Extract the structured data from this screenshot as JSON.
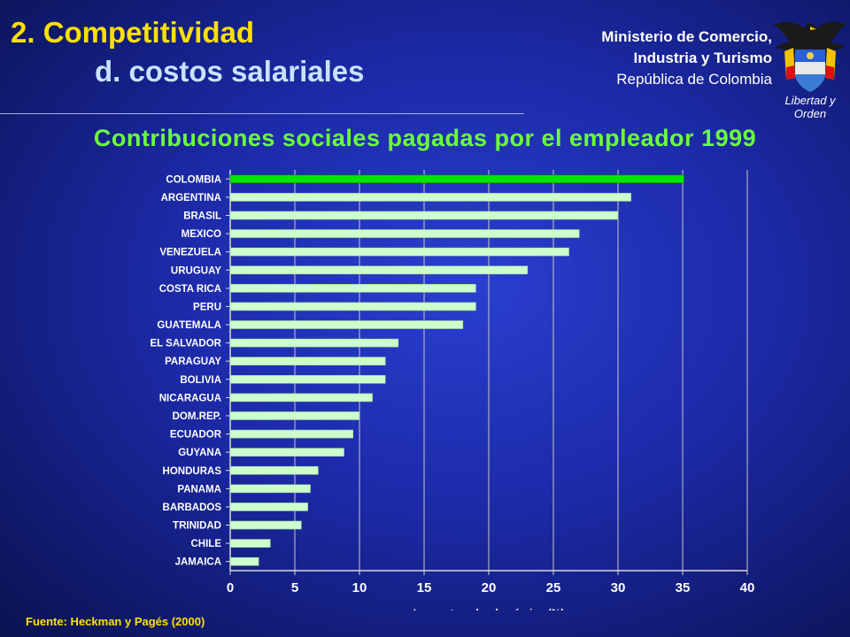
{
  "header": {
    "section": "2.  Competitividad",
    "subsection": "d. costos salariales",
    "ministry_line1": "Ministerio de Comercio,",
    "ministry_line2": "Industria y Turismo",
    "ministry_line3": "República de Colombia",
    "seal_caption": "Libertad y Orden"
  },
  "source": "Fuente: Heckman y Pagés (2000)",
  "colors": {
    "title": "#ffe000",
    "subtitle": "#c7e3ff",
    "chart_title": "#6bff3a",
    "highlight_bar": "#00e600",
    "bar": "#ccffcc"
  },
  "chart_data": {
    "type": "bar",
    "orientation": "horizontal",
    "title": "Contribuciones sociales pagadas por el empleador 1999",
    "xlabel": "Impuesto sobre la nómina (%)",
    "xlim": [
      0,
      40
    ],
    "xticks": [
      0,
      5,
      10,
      15,
      20,
      25,
      30,
      35,
      40
    ],
    "grid": "vertical",
    "highlight": "COLOMBIA",
    "categories": [
      "COLOMBIA",
      "ARGENTINA",
      "BRASIL",
      "MEXICO",
      "VENEZUELA",
      "URUGUAY",
      "COSTA RICA",
      "PERU",
      "GUATEMALA",
      "EL SALVADOR",
      "PARAGUAY",
      "BOLIVIA",
      "NICARAGUA",
      "DOM.REP.",
      "ECUADOR",
      "GUYANA",
      "HONDURAS",
      "PANAMA",
      "BARBADOS",
      "TRINIDAD",
      "CHILE",
      "JAMAICA"
    ],
    "values": [
      35.1,
      31.0,
      30.0,
      27.0,
      26.2,
      23.0,
      19.0,
      19.0,
      18.0,
      13.0,
      12.0,
      12.0,
      11.0,
      10.0,
      9.5,
      8.8,
      6.8,
      6.2,
      6.0,
      5.5,
      3.1,
      2.2
    ]
  }
}
